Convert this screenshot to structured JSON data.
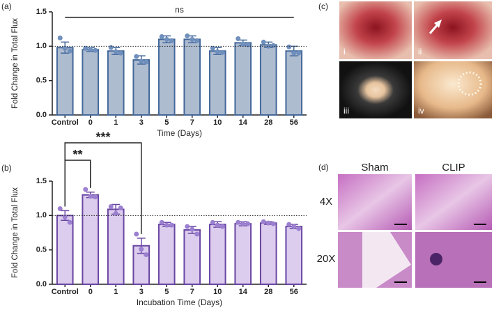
{
  "chart_data": [
    {
      "type": "bar",
      "panel": "(a)",
      "ylabel": "Fold Change in Total Flux",
      "xlabel": "Time (Days)",
      "categories": [
        "Control",
        "0",
        "1",
        "3",
        "5",
        "7",
        "10",
        "14",
        "28",
        "56"
      ],
      "values": [
        0.98,
        0.95,
        0.93,
        0.8,
        1.1,
        1.1,
        0.93,
        1.05,
        1.02,
        0.93
      ],
      "errors": [
        0.08,
        0.03,
        0.05,
        0.06,
        0.05,
        0.05,
        0.05,
        0.04,
        0.04,
        0.07
      ],
      "points": [
        [
          1.12,
          0.97,
          0.93
        ],
        [
          0.97,
          0.95,
          0.94
        ],
        [
          0.98,
          0.92,
          0.9
        ],
        [
          0.85,
          0.78,
          0.77
        ],
        [
          1.14,
          1.1,
          1.08
        ],
        [
          1.15,
          1.1,
          1.08
        ],
        [
          0.97,
          0.92,
          0.91
        ],
        [
          1.11,
          1.03,
          1.02
        ],
        [
          1.06,
          1.0,
          1.01
        ],
        [
          0.99,
          0.9,
          0.9
        ]
      ],
      "color": "#aebcd0",
      "edge_color": "#44689a",
      "point_color": "#6f8fbd",
      "ylim": [
        0,
        1.5
      ],
      "yticks": [
        {
          "value": 0,
          "label": "0.0"
        },
        0.5,
        {
          "value": 1,
          "label": "1.0"
        },
        1.5
      ],
      "reference_line": 1,
      "significance": [
        {
          "label": "ns",
          "between": [
            "Control",
            "56"
          ]
        }
      ]
    },
    {
      "type": "bar",
      "panel": "(b)",
      "ylabel": "Fold Change in Total Flux",
      "xlabel": "Incubation Time (Days)",
      "categories": [
        "Control",
        "0",
        "1",
        "3",
        "5",
        "7",
        "10",
        "14",
        "28",
        "56"
      ],
      "values": [
        1.0,
        1.3,
        1.09,
        0.56,
        0.87,
        0.79,
        0.87,
        0.88,
        0.89,
        0.84
      ],
      "errors": [
        0.07,
        0.04,
        0.07,
        0.11,
        0.03,
        0.05,
        0.04,
        0.03,
        0.02,
        0.03
      ],
      "points": [
        [
          1.1,
          0.98,
          0.9
        ],
        [
          1.38,
          1.28,
          1.27
        ],
        [
          1.13,
          1.03,
          1.11
        ],
        [
          0.73,
          0.51,
          0.43
        ],
        [
          0.9,
          0.86,
          0.86
        ],
        [
          0.84,
          0.8,
          0.73
        ],
        [
          0.9,
          0.86,
          0.84
        ],
        [
          0.9,
          0.88,
          0.88
        ],
        [
          0.91,
          0.89,
          0.88
        ],
        [
          0.87,
          0.84,
          0.81
        ]
      ],
      "color": "#dccdee",
      "edge_color": "#6a46a3",
      "point_color": "#9c80d0",
      "ylim": [
        0,
        1.5
      ],
      "yticks": [
        {
          "value": 0,
          "label": "0.0"
        },
        0.5,
        {
          "value": 1,
          "label": "1.0"
        },
        1.5
      ],
      "reference_line": 1,
      "significance": [
        {
          "label": "**",
          "between": [
            "Control",
            "0"
          ]
        },
        {
          "label": "***",
          "between": [
            "Control",
            "3"
          ]
        }
      ]
    }
  ],
  "photos": {
    "panel": "(c)",
    "labels": [
      "i",
      "ii",
      "iii",
      "iv"
    ]
  },
  "histology": {
    "panel": "(d)",
    "columns": [
      "Sham",
      "CLIP"
    ],
    "rows": [
      "4X",
      "20X"
    ]
  }
}
